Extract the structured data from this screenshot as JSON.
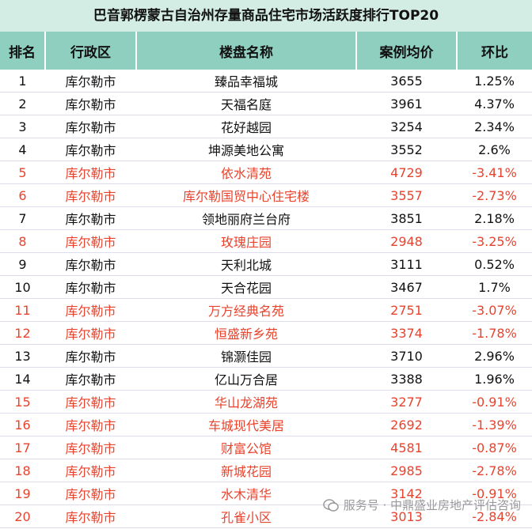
{
  "title": "巴音郭楞蒙古自治州存量商品住宅市场活跃度排行TOP20",
  "table": {
    "headers": [
      "排名",
      "行政区",
      "楼盘名称",
      "案例均价",
      "环比"
    ],
    "rows": [
      [
        1,
        "库尔勒市",
        "臻品幸福城",
        3655,
        "1.25%"
      ],
      [
        2,
        "库尔勒市",
        "天福名庭",
        3961,
        "4.37%"
      ],
      [
        3,
        "库尔勒市",
        "花好越园",
        3254,
        "2.34%"
      ],
      [
        4,
        "库尔勒市",
        "坤源美地公寓",
        3552,
        "2.6%"
      ],
      [
        5,
        "库尔勒市",
        "依水清苑",
        4729,
        "-3.41%"
      ],
      [
        6,
        "库尔勒市",
        "库尔勒国贸中心住宅楼",
        3557,
        "-2.73%"
      ],
      [
        7,
        "库尔勒市",
        "领地丽府兰台府",
        3851,
        "2.18%"
      ],
      [
        8,
        "库尔勒市",
        "玫瑰庄园",
        2948,
        "-3.25%"
      ],
      [
        9,
        "库尔勒市",
        "天利北城",
        3111,
        "0.52%"
      ],
      [
        10,
        "库尔勒市",
        "天合花园",
        3467,
        "1.7%"
      ],
      [
        11,
        "库尔勒市",
        "万方经典名苑",
        2751,
        "-3.07%"
      ],
      [
        12,
        "库尔勒市",
        "恒盛新乡苑",
        3374,
        "-1.78%"
      ],
      [
        13,
        "库尔勒市",
        "锦灏佳园",
        3710,
        "2.96%"
      ],
      [
        14,
        "库尔勒市",
        "亿山万合居",
        3388,
        "1.96%"
      ],
      [
        15,
        "库尔勒市",
        "华山龙湖苑",
        3277,
        "-0.91%"
      ],
      [
        16,
        "库尔勒市",
        "车城现代美居",
        2692,
        "-1.39%"
      ],
      [
        17,
        "库尔勒市",
        "财富公馆",
        4581,
        "-0.87%"
      ],
      [
        18,
        "库尔勒市",
        "新城花园",
        2985,
        "-2.78%"
      ],
      [
        19,
        "库尔勒市",
        "水木清华",
        3142,
        "-0.91%"
      ],
      [
        20,
        "库尔勒市",
        "孔雀小区",
        3013,
        "-2.84%"
      ]
    ]
  },
  "watermark": "服务号 · 中鼎盛业房地产评估咨询"
}
